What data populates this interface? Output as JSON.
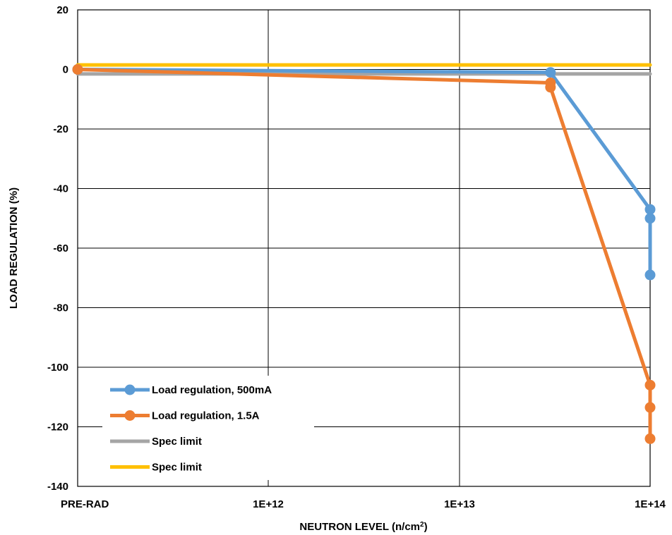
{
  "chart_data": {
    "type": "line",
    "xlabel": "NEUTRON LEVEL (n/cm",
    "xlabel_sup": "2",
    "xlabel_end": ")",
    "ylabel": "LOAD REGULATION (%)",
    "x_scale": "log",
    "x_tick_labels": [
      "PRE-RAD",
      "1E+12",
      "1E+13",
      "1E+14"
    ],
    "y_tick_labels": [
      "20",
      "0",
      "-20",
      "-40",
      "-60",
      "-80",
      "-100",
      "-120",
      "-140"
    ],
    "ylim": [
      -140,
      20
    ],
    "grid": true,
    "legend_position": "bottom-left",
    "series": [
      {
        "name": "Load regulation, 500mA",
        "color": "#5B9BD5",
        "markers": true,
        "points": [
          {
            "x": "PRE-RAD",
            "y": 0
          },
          {
            "x": 30000000000000.0,
            "y": -1
          },
          {
            "x": 100000000000000.0,
            "y": -47
          },
          {
            "x": 100000000000000.0,
            "y": -50
          },
          {
            "x": 100000000000000.0,
            "y": -69
          }
        ]
      },
      {
        "name": "Load regulation, 1.5A",
        "color": "#ED7D31",
        "markers": true,
        "points": [
          {
            "x": "PRE-RAD",
            "y": 0
          },
          {
            "x": 30000000000000.0,
            "y": -4.5
          },
          {
            "x": 30000000000000.0,
            "y": -6
          },
          {
            "x": 100000000000000.0,
            "y": -106
          },
          {
            "x": 100000000000000.0,
            "y": -113.5
          },
          {
            "x": 100000000000000.0,
            "y": -124
          }
        ]
      },
      {
        "name": "Spec limit",
        "color": "#A5A5A5",
        "markers": false,
        "points": [
          {
            "x": "PRE-RAD",
            "y": -1.5
          },
          {
            "x": 100000000000000.0,
            "y": -1.5
          }
        ]
      },
      {
        "name": "Spec limit",
        "color": "#FFC000",
        "markers": false,
        "points": [
          {
            "x": "PRE-RAD",
            "y": 1.5
          },
          {
            "x": 100000000000000.0,
            "y": 1.5
          }
        ]
      }
    ]
  }
}
